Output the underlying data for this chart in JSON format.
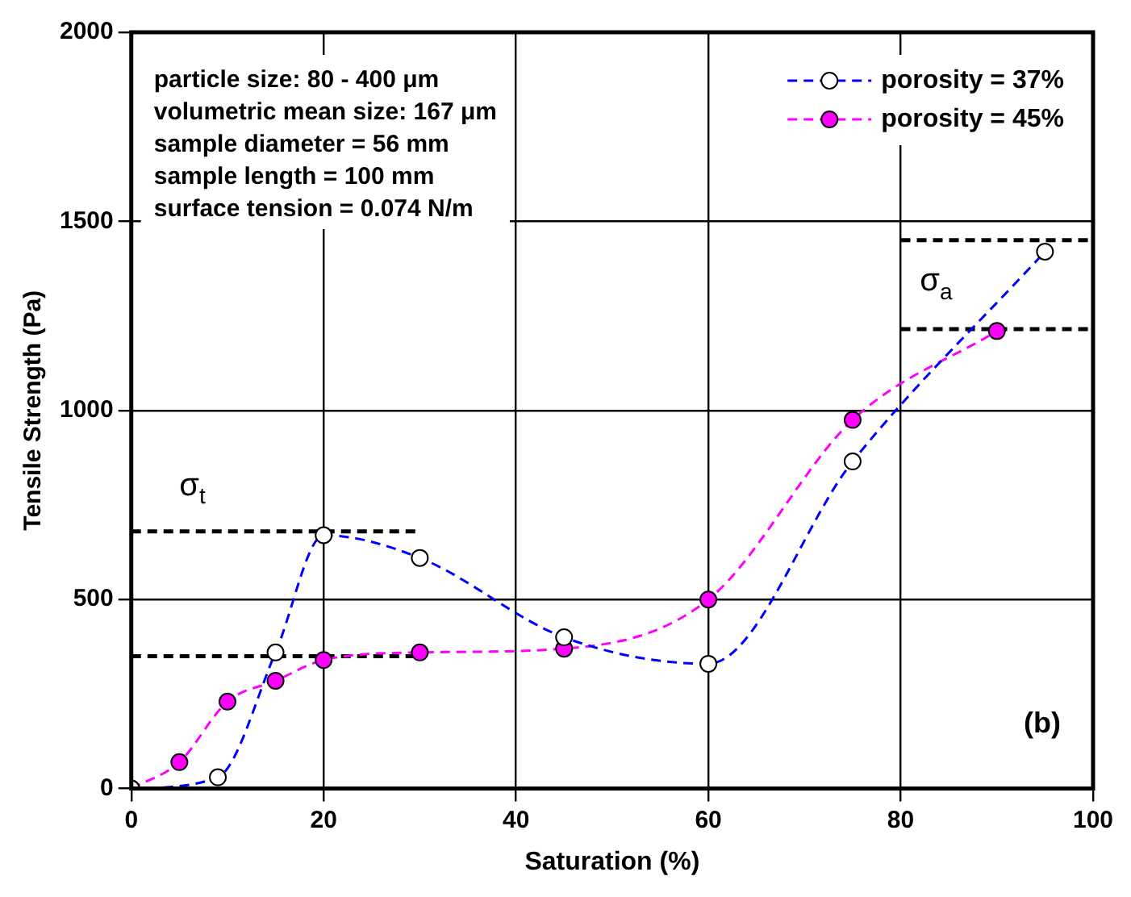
{
  "chart_data": {
    "type": "line",
    "xlabel": "Saturation (%)",
    "ylabel": "Tensile Strength (Pa)",
    "xlim": [
      0,
      100
    ],
    "xticks": [
      0,
      20,
      40,
      60,
      80,
      100
    ],
    "ylim": [
      0,
      2000
    ],
    "yticks": [
      0,
      500,
      1000,
      1500,
      2000
    ],
    "grid": true,
    "legend": "top right",
    "marker": "circle",
    "line_style": "dashed",
    "series": [
      {
        "name": "porosity = 37%",
        "color": "#0000ff",
        "x": [
          0,
          9,
          15,
          20,
          30,
          45,
          60,
          75,
          95
        ],
        "values": [
          0,
          30,
          360,
          670,
          610,
          400,
          330,
          865,
          1420
        ]
      },
      {
        "name": "porosity = 45%",
        "color": "#ff00ff",
        "x": [
          0,
          5,
          10,
          15,
          20,
          30,
          45,
          60,
          75,
          90
        ],
        "values": [
          0,
          70,
          230,
          285,
          340,
          360,
          370,
          500,
          975,
          1210
        ]
      },
      {
        "color": "#000000",
        "x": [
          0,
          30
        ],
        "values": [
          680,
          680
        ],
        "marker": "none"
      },
      {
        "color": "#000000",
        "x": [
          0,
          30
        ],
        "values": [
          350,
          350
        ],
        "marker": "none"
      },
      {
        "color": "#000000",
        "x": [
          80,
          100
        ],
        "values": [
          1450,
          1450
        ],
        "marker": "none"
      },
      {
        "color": "#000000",
        "x": [
          80,
          100
        ],
        "values": [
          1215,
          1215
        ],
        "marker": "none"
      }
    ],
    "annotations": [
      "particle size: 80 - 400 μm\nvolumetric mean size: 167 μm\nsample diameter = 56 mm\nsample length = 100 mm\nsurface tension = 0.074 N/m",
      "(b)",
      "σ$_{t}$",
      "σ$_{a}$"
    ]
  }
}
